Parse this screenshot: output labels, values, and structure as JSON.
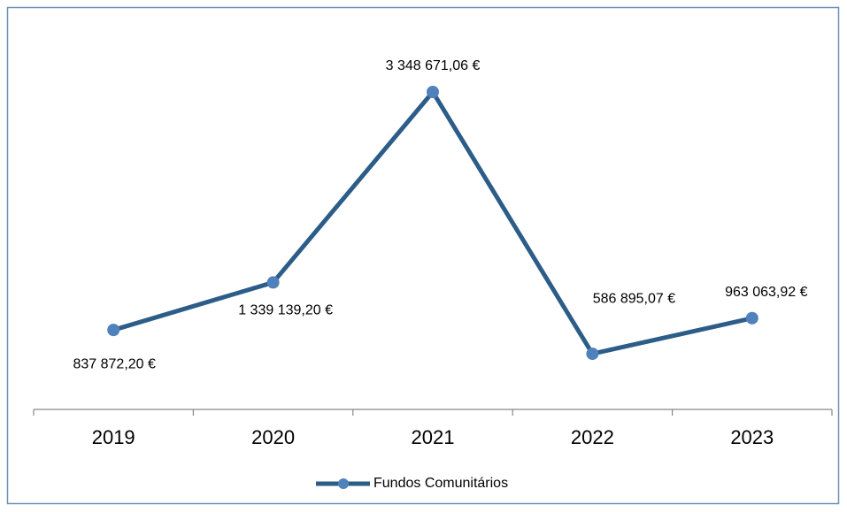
{
  "chart_data": {
    "type": "line",
    "categories": [
      "2019",
      "2020",
      "2021",
      "2022",
      "2023"
    ],
    "series": [
      {
        "name": "Fundos Comunitários",
        "color": "#2c5d88",
        "marker_color": "#4f81bd",
        "values": [
          837872.2,
          1339139.2,
          3348671.06,
          586895.07,
          963063.92
        ],
        "value_labels": [
          "837 872,20 €",
          "1 339 139,20 €",
          "3 348 671,06 €",
          "586 895,07 €",
          "963 063,92 €"
        ]
      }
    ],
    "legend": "bottom"
  }
}
